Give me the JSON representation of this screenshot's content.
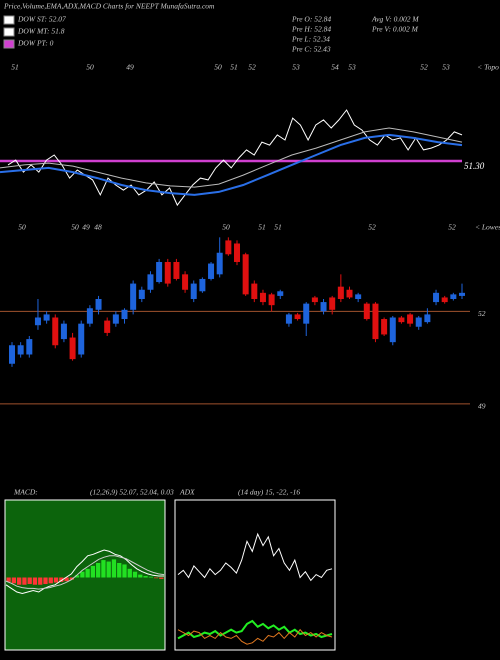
{
  "header": {
    "title": "Price,Volume,EMA,ADX,MACD Charts for NEEPT MunafaSutra.com",
    "legend": [
      "DOW ST: 52.07",
      "DOW MT: 51.8",
      "DOW PT: 0"
    ],
    "info": [
      "Pre  O: 52.84",
      "Pre  H: 52.84",
      "Pre  L: 52.34",
      "Pre  C: 52.43",
      "Avg V: 0.002  M",
      "Pre  V: 0.002  M"
    ]
  },
  "chart_data": [
    {
      "type": "line",
      "top_labels": [
        "51",
        "50",
        "49",
        "50",
        "51",
        "52",
        "53",
        "54",
        "53",
        "52",
        "53",
        "< Topo"
      ],
      "ylim": [
        49.5,
        54.5
      ],
      "hline": {
        "value": 51.3,
        "label": "51.30",
        "color": "#d040d0"
      },
      "series": [
        {
          "color": "#ffffff",
          "values": [
            51.17,
            51.33,
            50.93,
            51.17,
            50.93,
            51.33,
            51.5,
            51.17,
            50.73,
            51.0,
            50.83,
            50.67,
            50.17,
            50.73,
            50.5,
            50.33,
            50.5,
            50.17,
            50.33,
            50.6,
            50.17,
            50.4,
            49.83,
            50.17,
            50.5,
            50.73,
            50.67,
            51.07,
            51.33,
            51.07,
            51.4,
            51.67,
            51.5,
            51.93,
            51.83,
            52.17,
            52.0,
            52.73,
            52.5,
            52.0,
            52.5,
            52.67,
            52.4,
            52.67,
            53.0,
            52.5,
            52.33,
            52.0,
            51.83,
            52.17,
            52.0,
            52.07,
            51.67,
            52.07,
            51.67,
            51.73,
            51.83,
            52.0,
            52.27,
            52.17
          ]
        },
        {
          "color": "#bbbbbb",
          "values": [
            51.07,
            51.17,
            51.23,
            51.13,
            50.93,
            50.73,
            50.57,
            50.47,
            50.43,
            50.53,
            50.83,
            51.17,
            51.5,
            51.73,
            52.0,
            52.27,
            52.4,
            52.27,
            52.1,
            51.93
          ]
        },
        {
          "color": "#2a6fe8",
          "values": [
            50.93,
            51.0,
            51.07,
            50.93,
            50.73,
            50.5,
            50.33,
            50.23,
            50.17,
            50.27,
            50.5,
            50.83,
            51.17,
            51.5,
            51.83,
            52.07,
            52.17,
            52.07,
            51.93,
            51.83
          ]
        }
      ]
    },
    {
      "type": "candlestick",
      "top_labels": [
        "50",
        "50",
        "49",
        "48",
        "50",
        "51",
        "51",
        "52",
        "52",
        "< Lowes"
      ],
      "ylim": [
        48.8,
        54.8
      ],
      "yticks": [
        49,
        52
      ],
      "grid_color": "#a0522d",
      "up_color": "#1e64dc",
      "down_color": "#e01010",
      "candles": [
        {
          "o": 50.3,
          "h": 51.0,
          "l": 50.2,
          "c": 50.9
        },
        {
          "o": 50.6,
          "h": 51.0,
          "l": 50.5,
          "c": 50.9
        },
        {
          "o": 50.6,
          "h": 51.2,
          "l": 50.5,
          "c": 51.1
        },
        {
          "o": 51.55,
          "h": 52.4,
          "l": 51.4,
          "c": 51.8
        },
        {
          "o": 51.7,
          "h": 52.0,
          "l": 51.6,
          "c": 51.9
        },
        {
          "o": 51.8,
          "h": 51.9,
          "l": 50.8,
          "c": 50.9
        },
        {
          "o": 51.1,
          "h": 51.7,
          "l": 51.0,
          "c": 51.6
        },
        {
          "o": 51.15,
          "h": 51.3,
          "l": 50.4,
          "c": 50.45
        },
        {
          "o": 50.6,
          "h": 51.7,
          "l": 50.5,
          "c": 51.6
        },
        {
          "o": 51.6,
          "h": 52.2,
          "l": 51.5,
          "c": 52.1
        },
        {
          "o": 52.05,
          "h": 52.5,
          "l": 51.9,
          "c": 52.4
        },
        {
          "o": 51.7,
          "h": 51.8,
          "l": 51.2,
          "c": 51.3
        },
        {
          "o": 51.6,
          "h": 52.0,
          "l": 51.5,
          "c": 51.9
        },
        {
          "o": 51.75,
          "h": 52.1,
          "l": 51.6,
          "c": 52.05
        },
        {
          "o": 52.05,
          "h": 53.0,
          "l": 51.9,
          "c": 52.9
        },
        {
          "o": 52.4,
          "h": 52.8,
          "l": 52.3,
          "c": 52.7
        },
        {
          "o": 52.7,
          "h": 53.3,
          "l": 52.6,
          "c": 53.2
        },
        {
          "o": 52.95,
          "h": 53.7,
          "l": 52.9,
          "c": 53.6
        },
        {
          "o": 53.6,
          "h": 53.7,
          "l": 52.8,
          "c": 52.9
        },
        {
          "o": 53.6,
          "h": 53.7,
          "l": 53.0,
          "c": 53.05
        },
        {
          "o": 53.2,
          "h": 53.3,
          "l": 52.6,
          "c": 52.7
        },
        {
          "o": 52.4,
          "h": 53.0,
          "l": 52.3,
          "c": 52.9
        },
        {
          "o": 52.65,
          "h": 53.1,
          "l": 52.6,
          "c": 53.05
        },
        {
          "o": 53.05,
          "h": 53.6,
          "l": 53.0,
          "c": 53.55
        },
        {
          "o": 53.2,
          "h": 54.4,
          "l": 53.1,
          "c": 53.9
        },
        {
          "o": 54.3,
          "h": 54.4,
          "l": 53.8,
          "c": 53.85
        },
        {
          "o": 54.2,
          "h": 54.3,
          "l": 53.5,
          "c": 53.6
        },
        {
          "o": 53.85,
          "h": 53.9,
          "l": 52.5,
          "c": 52.55
        },
        {
          "o": 52.9,
          "h": 53.0,
          "l": 52.3,
          "c": 52.4
        },
        {
          "o": 52.6,
          "h": 52.7,
          "l": 52.2,
          "c": 52.3
        },
        {
          "o": 52.55,
          "h": 52.6,
          "l": 52.0,
          "c": 52.2
        },
        {
          "o": 52.5,
          "h": 52.7,
          "l": 52.4,
          "c": 52.65
        },
        {
          "o": 51.6,
          "h": 51.95,
          "l": 51.5,
          "c": 51.9
        },
        {
          "o": 51.9,
          "h": 51.95,
          "l": 51.7,
          "c": 51.75
        },
        {
          "o": 51.6,
          "h": 52.3,
          "l": 51.2,
          "c": 52.25
        },
        {
          "o": 52.45,
          "h": 52.5,
          "l": 52.2,
          "c": 52.3
        },
        {
          "o": 52.0,
          "h": 52.4,
          "l": 51.9,
          "c": 52.3
        },
        {
          "o": 52.45,
          "h": 52.5,
          "l": 51.9,
          "c": 52.05
        },
        {
          "o": 52.8,
          "h": 53.2,
          "l": 52.3,
          "c": 52.4
        },
        {
          "o": 52.7,
          "h": 52.8,
          "l": 52.4,
          "c": 52.45
        },
        {
          "o": 52.4,
          "h": 52.6,
          "l": 52.3,
          "c": 52.55
        },
        {
          "o": 52.25,
          "h": 52.3,
          "l": 51.7,
          "c": 51.75
        },
        {
          "o": 52.25,
          "h": 52.3,
          "l": 51.0,
          "c": 51.1
        },
        {
          "o": 51.75,
          "h": 51.8,
          "l": 51.2,
          "c": 51.25
        },
        {
          "o": 51.0,
          "h": 51.85,
          "l": 50.9,
          "c": 51.8
        },
        {
          "o": 51.8,
          "h": 51.85,
          "l": 51.6,
          "c": 51.65
        },
        {
          "o": 51.9,
          "h": 51.95,
          "l": 51.5,
          "c": 51.6
        },
        {
          "o": 51.5,
          "h": 51.85,
          "l": 51.4,
          "c": 51.8
        },
        {
          "o": 51.65,
          "h": 52.1,
          "l": 51.6,
          "c": 51.9
        },
        {
          "o": 52.3,
          "h": 52.7,
          "l": 52.2,
          "c": 52.6
        },
        {
          "o": 52.45,
          "h": 52.5,
          "l": 52.25,
          "c": 52.3
        },
        {
          "o": 52.4,
          "h": 52.6,
          "l": 52.35,
          "c": 52.55
        },
        {
          "o": 52.5,
          "h": 52.9,
          "l": 52.4,
          "c": 52.6
        }
      ]
    },
    {
      "type": "macd",
      "label": "MACD:",
      "params": "(12,26,9) 52.07, 52.04, 0.03",
      "ylim": [
        -1,
        1
      ],
      "background": "#0c640c",
      "pos_color": "#22e022",
      "neg_color": "#ff3535",
      "histogram": [
        -0.06,
        -0.08,
        -0.1,
        -0.1,
        -0.09,
        -0.1,
        -0.1,
        -0.09,
        -0.08,
        -0.07,
        -0.06,
        -0.05,
        -0.03,
        0.03,
        0.08,
        0.12,
        0.16,
        0.2,
        0.24,
        0.22,
        0.25,
        0.2,
        0.18,
        0.12,
        0.08,
        0.04,
        0.02,
        0.01,
        -0.01,
        -0.02
      ],
      "series": [
        {
          "color": "#ffffff",
          "values": [
            -0.1,
            -0.15,
            -0.2,
            -0.22,
            -0.2,
            -0.18,
            -0.2,
            -0.15,
            -0.12,
            -0.1,
            -0.05,
            0,
            0.05,
            0.15,
            0.22,
            0.3,
            0.32,
            0.35,
            0.38,
            0.36,
            0.32,
            0.3,
            0.25,
            0.18,
            0.12,
            0.08,
            0.05,
            0.03,
            0.02,
            0.02
          ]
        },
        {
          "color": "#cccccc",
          "values": [
            -0.05,
            -0.08,
            -0.12,
            -0.14,
            -0.15,
            -0.15,
            -0.16,
            -0.15,
            -0.14,
            -0.12,
            -0.1,
            -0.07,
            -0.03,
            0.03,
            0.1,
            0.15,
            0.2,
            0.25,
            0.28,
            0.3,
            0.3,
            0.28,
            0.26,
            0.22,
            0.18,
            0.14,
            0.1,
            0.07,
            0.05,
            0.04
          ]
        }
      ]
    },
    {
      "type": "line",
      "label": "ADX",
      "params": "(14 day) 15, -22, -16",
      "ylim": [
        0,
        100
      ],
      "series": [
        {
          "color": "#ffffff",
          "values": [
            52,
            55,
            50,
            58,
            54,
            50,
            56,
            52,
            55,
            60,
            57,
            53,
            62,
            75,
            68,
            80,
            72,
            78,
            65,
            70,
            60,
            55,
            62,
            50,
            54,
            48,
            52,
            50,
            55,
            56
          ]
        },
        {
          "color": "#22ee22",
          "values": [
            8,
            10,
            12,
            9,
            10,
            12,
            11,
            13,
            10,
            12,
            14,
            12,
            13,
            18,
            20,
            16,
            18,
            15,
            17,
            14,
            16,
            12,
            14,
            11,
            12,
            10,
            11,
            9,
            10,
            11
          ]
        },
        {
          "color": "#e07820",
          "values": [
            14,
            12,
            10,
            13,
            12,
            8,
            10,
            8,
            12,
            9,
            8,
            10,
            6,
            4,
            5,
            8,
            6,
            10,
            9,
            12,
            8,
            12,
            9,
            14,
            10,
            12,
            9,
            12,
            10,
            9
          ]
        }
      ]
    }
  ]
}
